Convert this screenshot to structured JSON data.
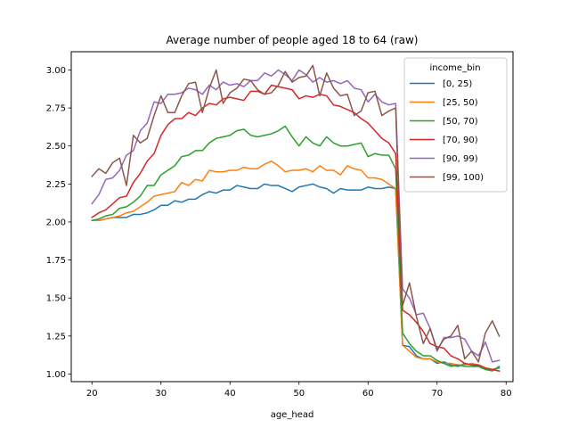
{
  "chart_data": {
    "type": "line",
    "title": "Average number of people aged 18 to 64 (raw)",
    "xlabel": "age_head",
    "ylabel": "",
    "xlim": [
      17,
      81
    ],
    "ylim": [
      0.95,
      3.12
    ],
    "xticks": [
      20,
      30,
      40,
      50,
      60,
      70,
      80
    ],
    "yticks": [
      1.0,
      1.25,
      1.5,
      1.75,
      2.0,
      2.25,
      2.5,
      2.75,
      3.0
    ],
    "ytick_labels": [
      "1.00",
      "1.25",
      "1.50",
      "1.75",
      "2.00",
      "2.25",
      "2.50",
      "2.75",
      "3.00"
    ],
    "grid": false,
    "legend": {
      "title": "income_bin",
      "position": "top-right"
    },
    "x": [
      20,
      21,
      22,
      23,
      24,
      25,
      26,
      27,
      28,
      29,
      30,
      31,
      32,
      33,
      34,
      35,
      36,
      37,
      38,
      39,
      40,
      41,
      42,
      43,
      44,
      45,
      46,
      47,
      48,
      49,
      50,
      51,
      52,
      53,
      54,
      55,
      56,
      57,
      58,
      59,
      60,
      61,
      62,
      63,
      64,
      65,
      66,
      67,
      68,
      69,
      70,
      71,
      72,
      73,
      74,
      75,
      76,
      77,
      78,
      79
    ],
    "series": [
      {
        "name": "[0, 25)",
        "color": "#1f77b4",
        "values": [
          2.01,
          2.01,
          2.02,
          2.03,
          2.03,
          2.03,
          2.05,
          2.05,
          2.06,
          2.08,
          2.11,
          2.11,
          2.14,
          2.13,
          2.15,
          2.15,
          2.18,
          2.2,
          2.19,
          2.21,
          2.21,
          2.24,
          2.23,
          2.22,
          2.22,
          2.25,
          2.24,
          2.24,
          2.22,
          2.2,
          2.23,
          2.24,
          2.25,
          2.23,
          2.22,
          2.19,
          2.22,
          2.21,
          2.21,
          2.21,
          2.23,
          2.22,
          2.22,
          2.23,
          2.22,
          1.19,
          1.18,
          1.12,
          1.1,
          1.1,
          1.07,
          1.08,
          1.06,
          1.05,
          1.07,
          1.06,
          1.05,
          1.03,
          1.03,
          1.04
        ]
      },
      {
        "name": "[25, 50)",
        "color": "#ff7f0e",
        "values": [
          2.01,
          2.01,
          2.02,
          2.03,
          2.04,
          2.06,
          2.07,
          2.1,
          2.13,
          2.17,
          2.18,
          2.19,
          2.2,
          2.26,
          2.24,
          2.28,
          2.27,
          2.34,
          2.33,
          2.33,
          2.34,
          2.34,
          2.36,
          2.35,
          2.35,
          2.38,
          2.4,
          2.37,
          2.33,
          2.34,
          2.34,
          2.35,
          2.33,
          2.37,
          2.34,
          2.34,
          2.31,
          2.37,
          2.35,
          2.34,
          2.29,
          2.29,
          2.28,
          2.25,
          2.22,
          1.19,
          1.15,
          1.11,
          1.1,
          1.1,
          1.08,
          1.07,
          1.07,
          1.06,
          1.06,
          1.07,
          1.06,
          1.04,
          1.03,
          1.02
        ]
      },
      {
        "name": "[50, 70)",
        "color": "#2ca02c",
        "values": [
          2.01,
          2.02,
          2.04,
          2.05,
          2.09,
          2.1,
          2.13,
          2.17,
          2.24,
          2.24,
          2.31,
          2.34,
          2.37,
          2.43,
          2.44,
          2.47,
          2.47,
          2.52,
          2.55,
          2.56,
          2.57,
          2.6,
          2.61,
          2.57,
          2.56,
          2.57,
          2.58,
          2.6,
          2.63,
          2.56,
          2.5,
          2.56,
          2.52,
          2.5,
          2.56,
          2.52,
          2.5,
          2.5,
          2.51,
          2.52,
          2.43,
          2.45,
          2.44,
          2.44,
          2.35,
          1.27,
          1.2,
          1.15,
          1.12,
          1.12,
          1.09,
          1.07,
          1.05,
          1.06,
          1.05,
          1.05,
          1.05,
          1.03,
          1.02,
          1.05
        ]
      },
      {
        "name": "[70, 90)",
        "color": "#d62728",
        "values": [
          2.03,
          2.06,
          2.08,
          2.12,
          2.16,
          2.17,
          2.26,
          2.32,
          2.4,
          2.45,
          2.57,
          2.64,
          2.68,
          2.68,
          2.72,
          2.7,
          2.75,
          2.78,
          2.77,
          2.81,
          2.82,
          2.81,
          2.8,
          2.86,
          2.86,
          2.84,
          2.9,
          2.89,
          2.88,
          2.87,
          2.81,
          2.83,
          2.82,
          2.84,
          2.83,
          2.77,
          2.76,
          2.74,
          2.72,
          2.68,
          2.65,
          2.6,
          2.55,
          2.52,
          2.45,
          1.42,
          1.39,
          1.34,
          1.28,
          1.2,
          1.18,
          1.17,
          1.12,
          1.1,
          1.07,
          1.06,
          1.06,
          1.04,
          1.03,
          1.02
        ]
      },
      {
        "name": "[90, 99)",
        "color": "#9467bd",
        "values": [
          2.12,
          2.18,
          2.28,
          2.29,
          2.34,
          2.44,
          2.47,
          2.6,
          2.65,
          2.79,
          2.78,
          2.84,
          2.84,
          2.85,
          2.88,
          2.87,
          2.84,
          2.9,
          2.87,
          2.92,
          2.9,
          2.91,
          2.89,
          2.93,
          2.93,
          2.98,
          2.96,
          3.0,
          2.97,
          2.93,
          3.0,
          2.97,
          2.92,
          2.95,
          2.92,
          2.93,
          2.91,
          2.93,
          2.88,
          2.87,
          2.79,
          2.84,
          2.79,
          2.77,
          2.78,
          1.56,
          1.5,
          1.39,
          1.4,
          1.3,
          1.15,
          1.24,
          1.24,
          1.25,
          1.23,
          1.15,
          1.12,
          1.21,
          1.08,
          1.09
        ]
      },
      {
        "name": "[99, 100)",
        "color": "#8c564b",
        "values": [
          2.3,
          2.35,
          2.32,
          2.39,
          2.42,
          2.24,
          2.57,
          2.52,
          2.55,
          2.7,
          2.83,
          2.72,
          2.72,
          2.83,
          2.91,
          2.92,
          2.72,
          2.88,
          3.0,
          2.78,
          2.85,
          2.88,
          2.94,
          2.93,
          2.87,
          2.84,
          2.85,
          2.9,
          2.99,
          2.92,
          2.95,
          2.96,
          3.03,
          2.83,
          2.98,
          2.88,
          2.83,
          2.84,
          2.7,
          2.73,
          2.85,
          2.86,
          2.7,
          2.73,
          2.75,
          1.45,
          1.6,
          1.38,
          1.2,
          1.3,
          1.16,
          1.23,
          1.25,
          1.32,
          1.1,
          1.15,
          1.08,
          1.27,
          1.35,
          1.25
        ]
      }
    ]
  }
}
